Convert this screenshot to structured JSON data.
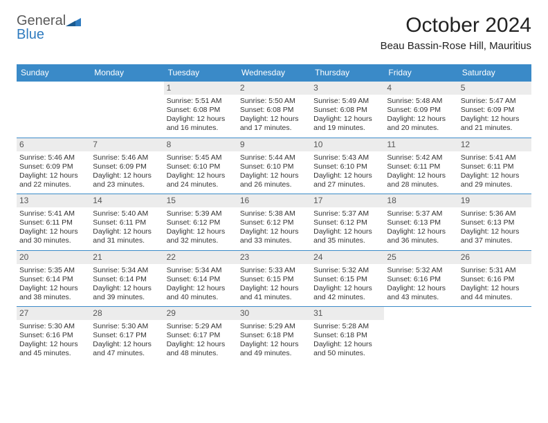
{
  "logo": {
    "word1": "General",
    "word2": "Blue",
    "markColor": "#2f7bbf",
    "textColor1": "#5a5a5a",
    "textColor2": "#2f7bbf"
  },
  "title": "October 2024",
  "location": "Beau Bassin-Rose Hill, Mauritius",
  "colors": {
    "headerBg": "#3a8ac8",
    "headerFg": "#ffffff",
    "daynumBg": "#ececec",
    "rowBorder": "#3a8ac8"
  },
  "weekdays": [
    "Sunday",
    "Monday",
    "Tuesday",
    "Wednesday",
    "Thursday",
    "Friday",
    "Saturday"
  ],
  "cells": [
    {
      "n": "",
      "sr": "",
      "ss": "",
      "d1": "",
      "d2": ""
    },
    {
      "n": "",
      "sr": "",
      "ss": "",
      "d1": "",
      "d2": ""
    },
    {
      "n": "1",
      "sr": "Sunrise: 5:51 AM",
      "ss": "Sunset: 6:08 PM",
      "d1": "Daylight: 12 hours",
      "d2": "and 16 minutes."
    },
    {
      "n": "2",
      "sr": "Sunrise: 5:50 AM",
      "ss": "Sunset: 6:08 PM",
      "d1": "Daylight: 12 hours",
      "d2": "and 17 minutes."
    },
    {
      "n": "3",
      "sr": "Sunrise: 5:49 AM",
      "ss": "Sunset: 6:08 PM",
      "d1": "Daylight: 12 hours",
      "d2": "and 19 minutes."
    },
    {
      "n": "4",
      "sr": "Sunrise: 5:48 AM",
      "ss": "Sunset: 6:09 PM",
      "d1": "Daylight: 12 hours",
      "d2": "and 20 minutes."
    },
    {
      "n": "5",
      "sr": "Sunrise: 5:47 AM",
      "ss": "Sunset: 6:09 PM",
      "d1": "Daylight: 12 hours",
      "d2": "and 21 minutes."
    },
    {
      "n": "6",
      "sr": "Sunrise: 5:46 AM",
      "ss": "Sunset: 6:09 PM",
      "d1": "Daylight: 12 hours",
      "d2": "and 22 minutes."
    },
    {
      "n": "7",
      "sr": "Sunrise: 5:46 AM",
      "ss": "Sunset: 6:09 PM",
      "d1": "Daylight: 12 hours",
      "d2": "and 23 minutes."
    },
    {
      "n": "8",
      "sr": "Sunrise: 5:45 AM",
      "ss": "Sunset: 6:10 PM",
      "d1": "Daylight: 12 hours",
      "d2": "and 24 minutes."
    },
    {
      "n": "9",
      "sr": "Sunrise: 5:44 AM",
      "ss": "Sunset: 6:10 PM",
      "d1": "Daylight: 12 hours",
      "d2": "and 26 minutes."
    },
    {
      "n": "10",
      "sr": "Sunrise: 5:43 AM",
      "ss": "Sunset: 6:10 PM",
      "d1": "Daylight: 12 hours",
      "d2": "and 27 minutes."
    },
    {
      "n": "11",
      "sr": "Sunrise: 5:42 AM",
      "ss": "Sunset: 6:11 PM",
      "d1": "Daylight: 12 hours",
      "d2": "and 28 minutes."
    },
    {
      "n": "12",
      "sr": "Sunrise: 5:41 AM",
      "ss": "Sunset: 6:11 PM",
      "d1": "Daylight: 12 hours",
      "d2": "and 29 minutes."
    },
    {
      "n": "13",
      "sr": "Sunrise: 5:41 AM",
      "ss": "Sunset: 6:11 PM",
      "d1": "Daylight: 12 hours",
      "d2": "and 30 minutes."
    },
    {
      "n": "14",
      "sr": "Sunrise: 5:40 AM",
      "ss": "Sunset: 6:11 PM",
      "d1": "Daylight: 12 hours",
      "d2": "and 31 minutes."
    },
    {
      "n": "15",
      "sr": "Sunrise: 5:39 AM",
      "ss": "Sunset: 6:12 PM",
      "d1": "Daylight: 12 hours",
      "d2": "and 32 minutes."
    },
    {
      "n": "16",
      "sr": "Sunrise: 5:38 AM",
      "ss": "Sunset: 6:12 PM",
      "d1": "Daylight: 12 hours",
      "d2": "and 33 minutes."
    },
    {
      "n": "17",
      "sr": "Sunrise: 5:37 AM",
      "ss": "Sunset: 6:12 PM",
      "d1": "Daylight: 12 hours",
      "d2": "and 35 minutes."
    },
    {
      "n": "18",
      "sr": "Sunrise: 5:37 AM",
      "ss": "Sunset: 6:13 PM",
      "d1": "Daylight: 12 hours",
      "d2": "and 36 minutes."
    },
    {
      "n": "19",
      "sr": "Sunrise: 5:36 AM",
      "ss": "Sunset: 6:13 PM",
      "d1": "Daylight: 12 hours",
      "d2": "and 37 minutes."
    },
    {
      "n": "20",
      "sr": "Sunrise: 5:35 AM",
      "ss": "Sunset: 6:14 PM",
      "d1": "Daylight: 12 hours",
      "d2": "and 38 minutes."
    },
    {
      "n": "21",
      "sr": "Sunrise: 5:34 AM",
      "ss": "Sunset: 6:14 PM",
      "d1": "Daylight: 12 hours",
      "d2": "and 39 minutes."
    },
    {
      "n": "22",
      "sr": "Sunrise: 5:34 AM",
      "ss": "Sunset: 6:14 PM",
      "d1": "Daylight: 12 hours",
      "d2": "and 40 minutes."
    },
    {
      "n": "23",
      "sr": "Sunrise: 5:33 AM",
      "ss": "Sunset: 6:15 PM",
      "d1": "Daylight: 12 hours",
      "d2": "and 41 minutes."
    },
    {
      "n": "24",
      "sr": "Sunrise: 5:32 AM",
      "ss": "Sunset: 6:15 PM",
      "d1": "Daylight: 12 hours",
      "d2": "and 42 minutes."
    },
    {
      "n": "25",
      "sr": "Sunrise: 5:32 AM",
      "ss": "Sunset: 6:16 PM",
      "d1": "Daylight: 12 hours",
      "d2": "and 43 minutes."
    },
    {
      "n": "26",
      "sr": "Sunrise: 5:31 AM",
      "ss": "Sunset: 6:16 PM",
      "d1": "Daylight: 12 hours",
      "d2": "and 44 minutes."
    },
    {
      "n": "27",
      "sr": "Sunrise: 5:30 AM",
      "ss": "Sunset: 6:16 PM",
      "d1": "Daylight: 12 hours",
      "d2": "and 45 minutes."
    },
    {
      "n": "28",
      "sr": "Sunrise: 5:30 AM",
      "ss": "Sunset: 6:17 PM",
      "d1": "Daylight: 12 hours",
      "d2": "and 47 minutes."
    },
    {
      "n": "29",
      "sr": "Sunrise: 5:29 AM",
      "ss": "Sunset: 6:17 PM",
      "d1": "Daylight: 12 hours",
      "d2": "and 48 minutes."
    },
    {
      "n": "30",
      "sr": "Sunrise: 5:29 AM",
      "ss": "Sunset: 6:18 PM",
      "d1": "Daylight: 12 hours",
      "d2": "and 49 minutes."
    },
    {
      "n": "31",
      "sr": "Sunrise: 5:28 AM",
      "ss": "Sunset: 6:18 PM",
      "d1": "Daylight: 12 hours",
      "d2": "and 50 minutes."
    },
    {
      "n": "",
      "sr": "",
      "ss": "",
      "d1": "",
      "d2": ""
    },
    {
      "n": "",
      "sr": "",
      "ss": "",
      "d1": "",
      "d2": ""
    }
  ]
}
